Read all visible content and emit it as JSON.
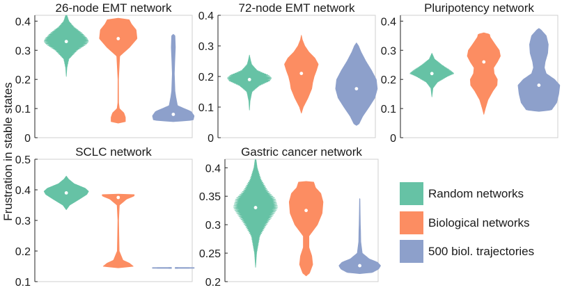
{
  "ylabel": "Frustration in stable states",
  "colors": {
    "random": "#66c2a5",
    "biological": "#fc8d62",
    "trajectories": "#8da0cb"
  },
  "legend": [
    {
      "label": "Random networks",
      "color": "#66c2a5"
    },
    {
      "label": "Biological networks",
      "color": "#fc8d62"
    },
    {
      "label": "500 biol. trajectories",
      "color": "#8da0cb"
    }
  ],
  "chart_data": [
    {
      "type": "violin",
      "title": "26-node EMT network",
      "ylim": [
        0,
        0.42
      ],
      "yticks": [
        0,
        0.1,
        0.2,
        0.3,
        0.4
      ],
      "ytick_labels": [
        "0",
        "0.1",
        "0.2",
        "0.3",
        "0.4"
      ],
      "series": [
        {
          "group": "random",
          "median": 0.33,
          "serrated": true,
          "profile": [
            [
              0.21,
              0
            ],
            [
              0.24,
              0.03
            ],
            [
              0.27,
              0.12
            ],
            [
              0.3,
              0.5
            ],
            [
              0.32,
              0.9
            ],
            [
              0.33,
              1
            ],
            [
              0.34,
              0.95
            ],
            [
              0.36,
              0.7
            ],
            [
              0.38,
              0.35
            ],
            [
              0.4,
              0.12
            ],
            [
              0.42,
              0.03
            ],
            [
              0.43,
              0
            ]
          ]
        },
        {
          "group": "biological",
          "median": 0.34,
          "profile": [
            [
              0.05,
              0
            ],
            [
              0.055,
              0.38
            ],
            [
              0.07,
              0.38
            ],
            [
              0.085,
              0.3
            ],
            [
              0.1,
              0.06
            ],
            [
              0.12,
              0.02
            ],
            [
              0.2,
              0.015
            ],
            [
              0.28,
              0.08
            ],
            [
              0.31,
              0.6
            ],
            [
              0.34,
              1
            ],
            [
              0.37,
              0.95
            ],
            [
              0.39,
              0.7
            ],
            [
              0.405,
              0.58
            ],
            [
              0.41,
              0
            ]
          ]
        },
        {
          "group": "trajectories",
          "median": 0.08,
          "profile": [
            [
              0.055,
              0
            ],
            [
              0.06,
              0.95
            ],
            [
              0.075,
              1
            ],
            [
              0.09,
              0.85
            ],
            [
              0.11,
              0.2
            ],
            [
              0.14,
              0.12
            ],
            [
              0.16,
              0.08
            ],
            [
              0.18,
              0.07
            ],
            [
              0.22,
              0.05
            ],
            [
              0.26,
              0.07
            ],
            [
              0.31,
              0.1
            ],
            [
              0.35,
              0.08
            ],
            [
              0.355,
              0
            ]
          ]
        }
      ]
    },
    {
      "type": "violin",
      "title": "72-node EMT network",
      "ylim": [
        0,
        0.4
      ],
      "yticks": [
        0,
        0.1,
        0.2,
        0.3,
        0.4
      ],
      "ytick_labels": [
        "0",
        "0.1",
        "0.2",
        "0.3",
        "0.4"
      ],
      "series": [
        {
          "group": "random",
          "median": 0.19,
          "serrated": true,
          "profile": [
            [
              0.09,
              0
            ],
            [
              0.12,
              0.03
            ],
            [
              0.15,
              0.12
            ],
            [
              0.17,
              0.45
            ],
            [
              0.185,
              0.9
            ],
            [
              0.195,
              1
            ],
            [
              0.205,
              0.85
            ],
            [
              0.22,
              0.35
            ],
            [
              0.24,
              0.1
            ],
            [
              0.26,
              0.03
            ],
            [
              0.27,
              0
            ]
          ]
        },
        {
          "group": "biological",
          "median": 0.21,
          "profile": [
            [
              0.08,
              0
            ],
            [
              0.1,
              0.1
            ],
            [
              0.13,
              0.35
            ],
            [
              0.16,
              0.55
            ],
            [
              0.18,
              0.6
            ],
            [
              0.2,
              0.68
            ],
            [
              0.22,
              0.8
            ],
            [
              0.24,
              0.9
            ],
            [
              0.26,
              0.72
            ],
            [
              0.28,
              0.4
            ],
            [
              0.3,
              0.18
            ],
            [
              0.32,
              0.05
            ],
            [
              0.335,
              0
            ]
          ]
        },
        {
          "group": "trajectories",
          "median": 0.16,
          "profile": [
            [
              0.04,
              0
            ],
            [
              0.045,
              0.12
            ],
            [
              0.07,
              0.3
            ],
            [
              0.1,
              0.6
            ],
            [
              0.13,
              0.88
            ],
            [
              0.16,
              1
            ],
            [
              0.19,
              0.95
            ],
            [
              0.22,
              0.72
            ],
            [
              0.25,
              0.45
            ],
            [
              0.28,
              0.22
            ],
            [
              0.3,
              0.1
            ],
            [
              0.31,
              0
            ]
          ]
        }
      ]
    },
    {
      "type": "violin",
      "title": "Pluripotency network",
      "ylim": [
        0,
        0.42
      ],
      "yticks": [
        0,
        0.1,
        0.2,
        0.3,
        0.4
      ],
      "ytick_labels": [
        "0",
        "0.1",
        "0.2",
        "0.3",
        "0.4"
      ],
      "series": [
        {
          "group": "random",
          "median": 0.22,
          "serrated": true,
          "profile": [
            [
              0.14,
              0
            ],
            [
              0.17,
              0.05
            ],
            [
              0.19,
              0.25
            ],
            [
              0.21,
              0.7
            ],
            [
              0.22,
              1
            ],
            [
              0.23,
              0.85
            ],
            [
              0.25,
              0.45
            ],
            [
              0.27,
              0.12
            ],
            [
              0.29,
              0
            ]
          ]
        },
        {
          "group": "biological",
          "median": 0.26,
          "profile": [
            [
              0.08,
              0
            ],
            [
              0.1,
              0.08
            ],
            [
              0.13,
              0.22
            ],
            [
              0.16,
              0.48
            ],
            [
              0.18,
              0.7
            ],
            [
              0.2,
              0.72
            ],
            [
              0.22,
              0.55
            ],
            [
              0.24,
              0.52
            ],
            [
              0.26,
              0.72
            ],
            [
              0.28,
              0.88
            ],
            [
              0.3,
              0.82
            ],
            [
              0.32,
              0.6
            ],
            [
              0.345,
              0.34
            ],
            [
              0.355,
              0.3
            ],
            [
              0.36,
              0
            ]
          ]
        },
        {
          "group": "trajectories",
          "median": 0.18,
          "profile": [
            [
              0.09,
              0
            ],
            [
              0.095,
              0.6
            ],
            [
              0.12,
              0.85
            ],
            [
              0.15,
              0.95
            ],
            [
              0.18,
              1
            ],
            [
              0.2,
              0.75
            ],
            [
              0.22,
              0.35
            ],
            [
              0.24,
              0.26
            ],
            [
              0.26,
              0.3
            ],
            [
              0.29,
              0.42
            ],
            [
              0.32,
              0.45
            ],
            [
              0.35,
              0.35
            ],
            [
              0.37,
              0.1
            ],
            [
              0.375,
              0
            ]
          ]
        }
      ]
    },
    {
      "type": "violin",
      "title": "SCLC network",
      "ylim": [
        0.1,
        0.5
      ],
      "yticks": [
        0.1,
        0.2,
        0.3,
        0.4,
        0.5
      ],
      "ytick_labels": [
        "0.1",
        "0.2",
        "0.3",
        "0.4",
        "0.5"
      ],
      "series": [
        {
          "group": "random",
          "median": 0.39,
          "profile": [
            [
              0.335,
              0
            ],
            [
              0.35,
              0.15
            ],
            [
              0.37,
              0.6
            ],
            [
              0.385,
              0.92
            ],
            [
              0.395,
              1
            ],
            [
              0.405,
              0.85
            ],
            [
              0.42,
              0.35
            ],
            [
              0.435,
              0.1
            ],
            [
              0.445,
              0
            ]
          ]
        },
        {
          "group": "biological",
          "median": 0.375,
          "profile": [
            [
              0.145,
              0
            ],
            [
              0.15,
              0.8
            ],
            [
              0.16,
              0.6
            ],
            [
              0.17,
              0.25
            ],
            [
              0.2,
              0.05
            ],
            [
              0.3,
              0.02
            ],
            [
              0.35,
              0.06
            ],
            [
              0.37,
              0.45
            ],
            [
              0.38,
              0.85
            ],
            [
              0.385,
              0.85
            ],
            [
              0.386,
              0
            ]
          ]
        },
        {
          "group": "trajectories",
          "median": 0.145,
          "profile": [
            [
              0.143,
              0
            ],
            [
              0.1435,
              1
            ],
            [
              0.146,
              1
            ],
            [
              0.1465,
              0
            ]
          ]
        }
      ]
    },
    {
      "type": "violin",
      "title": "Gastric cancer network",
      "ylim": [
        0.2,
        0.415
      ],
      "yticks": [
        0.2,
        0.25,
        0.3,
        0.35,
        0.4
      ],
      "ytick_labels": [
        "0.2",
        "0.25",
        "0.3",
        "0.35",
        "0.4"
      ],
      "series": [
        {
          "group": "random",
          "median": 0.33,
          "serrated": true,
          "profile": [
            [
              0.225,
              0
            ],
            [
              0.25,
              0.05
            ],
            [
              0.28,
              0.2
            ],
            [
              0.3,
              0.5
            ],
            [
              0.32,
              0.85
            ],
            [
              0.33,
              1
            ],
            [
              0.345,
              0.9
            ],
            [
              0.36,
              0.55
            ],
            [
              0.38,
              0.25
            ],
            [
              0.4,
              0.08
            ],
            [
              0.415,
              0.02
            ]
          ]
        },
        {
          "group": "biological",
          "median": 0.325,
          "profile": [
            [
              0.21,
              0
            ],
            [
              0.215,
              0.18
            ],
            [
              0.23,
              0.35
            ],
            [
              0.245,
              0.3
            ],
            [
              0.26,
              0.15
            ],
            [
              0.28,
              0.15
            ],
            [
              0.3,
              0.6
            ],
            [
              0.32,
              0.85
            ],
            [
              0.34,
              0.9
            ],
            [
              0.355,
              0.78
            ],
            [
              0.365,
              0.5
            ],
            [
              0.375,
              0.4
            ],
            [
              0.376,
              0
            ]
          ]
        },
        {
          "group": "trajectories",
          "median": 0.228,
          "profile": [
            [
              0.214,
              0
            ],
            [
              0.216,
              0.6
            ],
            [
              0.222,
              0.9
            ],
            [
              0.228,
              1
            ],
            [
              0.234,
              0.85
            ],
            [
              0.24,
              0.45
            ],
            [
              0.25,
              0.12
            ],
            [
              0.27,
              0.05
            ],
            [
              0.29,
              0.04
            ],
            [
              0.3,
              0.03
            ],
            [
              0.32,
              0.02
            ],
            [
              0.345,
              0.01
            ],
            [
              0.346,
              0
            ]
          ]
        }
      ]
    }
  ]
}
